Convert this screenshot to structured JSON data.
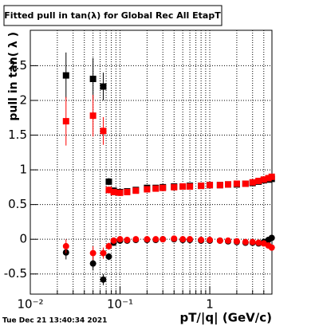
{
  "chart_data": {
    "type": "scatter",
    "title": "Fitted pull in tan(λ) for Global Rec All EtapT",
    "x_label": "pT/|q| (GeV/c)",
    "y_label": "pull in tan( λ )",
    "footer": "Tue Dec 21 13:40:34 2021",
    "xlog": true,
    "grid": true,
    "xlim": [
      0.01,
      4.93
    ],
    "ylim": [
      -0.79,
      3.01
    ],
    "xticks": [
      {
        "value": 0.01,
        "label": "10⁻²"
      },
      {
        "value": 0.1,
        "label": "10⁻¹"
      },
      1
    ],
    "xminor": [
      0.02,
      0.03,
      0.04,
      0.05,
      0.06,
      0.07,
      0.08,
      0.09,
      0.2,
      0.3,
      0.4,
      0.5,
      0.6,
      0.7,
      0.8,
      0.9,
      2,
      3,
      4
    ],
    "yticks": [
      -0.5,
      0,
      0.5,
      1,
      1.5,
      2,
      2.5
    ],
    "series": [
      {
        "color": "#000000",
        "marker": "square",
        "x": [
          0.025,
          0.05,
          0.065,
          0.075,
          0.085,
          0.1,
          0.12,
          0.15,
          0.2,
          0.25,
          0.3,
          0.4,
          0.5,
          0.6,
          0.8,
          1,
          1.3,
          1.6,
          2,
          2.5,
          3,
          3.5,
          4,
          4.5,
          4.9
        ],
        "values": [
          2.36,
          2.31,
          2.2,
          0.83,
          0.7,
          0.68,
          0.69,
          0.71,
          0.74,
          0.74,
          0.75,
          0.76,
          0.76,
          0.77,
          0.77,
          0.78,
          0.78,
          0.79,
          0.79,
          0.8,
          0.81,
          0.83,
          0.85,
          0.86,
          0.87
        ],
        "errors": [
          0.33,
          0.3,
          0.2,
          0.05,
          0.04,
          0.02,
          0.02,
          0.02,
          0.02,
          0.02,
          0.02,
          0.02,
          0.02,
          0.02,
          0.02,
          0.02,
          0.02,
          0.02,
          0.02,
          0.02,
          0.02,
          0.02,
          0.02,
          0.02,
          0.02
        ]
      },
      {
        "color": "#ff0000",
        "marker": "square",
        "x": [
          0.025,
          0.05,
          0.065,
          0.075,
          0.085,
          0.1,
          0.12,
          0.15,
          0.2,
          0.25,
          0.3,
          0.4,
          0.5,
          0.6,
          0.8,
          1,
          1.3,
          1.6,
          2,
          2.5,
          3,
          3.5,
          4,
          4.5,
          4.9
        ],
        "values": [
          1.7,
          1.78,
          1.56,
          0.71,
          0.68,
          0.67,
          0.68,
          0.7,
          0.72,
          0.73,
          0.74,
          0.75,
          0.76,
          0.76,
          0.77,
          0.78,
          0.78,
          0.79,
          0.8,
          0.8,
          0.82,
          0.84,
          0.86,
          0.88,
          0.9
        ],
        "errors": [
          0.35,
          0.3,
          0.2,
          0.05,
          0.04,
          0.02,
          0.02,
          0.02,
          0.02,
          0.02,
          0.02,
          0.02,
          0.02,
          0.02,
          0.02,
          0.02,
          0.02,
          0.02,
          0.02,
          0.02,
          0.02,
          0.02,
          0.02,
          0.02,
          0.02
        ]
      },
      {
        "color": "#000000",
        "marker": "circle",
        "x": [
          0.025,
          0.05,
          0.065,
          0.075,
          0.085,
          0.1,
          0.12,
          0.15,
          0.2,
          0.25,
          0.3,
          0.4,
          0.5,
          0.6,
          0.8,
          1,
          1.3,
          1.6,
          2,
          2.5,
          3,
          3.5,
          4,
          4.5,
          4.9
        ],
        "values": [
          -0.19,
          -0.35,
          -0.58,
          -0.25,
          -0.05,
          -0.02,
          -0.02,
          -0.01,
          -0.01,
          -0.01,
          0,
          0,
          -0.01,
          -0.01,
          -0.02,
          -0.02,
          -0.02,
          -0.03,
          -0.04,
          -0.05,
          -0.05,
          -0.06,
          -0.04,
          -0.01,
          0.02
        ],
        "errors": [
          0.1,
          0.1,
          0.08,
          0.05,
          0.03,
          0.02,
          0.02,
          0.02,
          0.02,
          0.02,
          0.02,
          0.02,
          0.02,
          0.02,
          0.02,
          0.02,
          0.02,
          0.02,
          0.02,
          0.02,
          0.02,
          0.02,
          0.02,
          0.02,
          0.02
        ]
      },
      {
        "color": "#ff0000",
        "marker": "circle",
        "x": [
          0.025,
          0.05,
          0.065,
          0.075,
          0.085,
          0.1,
          0.12,
          0.15,
          0.2,
          0.25,
          0.3,
          0.4,
          0.5,
          0.6,
          0.8,
          1,
          1.3,
          1.6,
          2,
          2.5,
          3,
          3.5,
          4,
          4.5,
          4.9
        ],
        "values": [
          -0.1,
          -0.2,
          -0.2,
          -0.1,
          -0.02,
          0,
          -0.01,
          0,
          0,
          0,
          0,
          0.01,
          0,
          0,
          -0.01,
          -0.01,
          -0.02,
          -0.02,
          -0.03,
          -0.04,
          -0.04,
          -0.05,
          -0.06,
          -0.09,
          -0.12
        ],
        "errors": [
          0.1,
          0.1,
          0.08,
          0.05,
          0.03,
          0.02,
          0.02,
          0.02,
          0.02,
          0.02,
          0.02,
          0.02,
          0.02,
          0.02,
          0.02,
          0.02,
          0.02,
          0.02,
          0.02,
          0.02,
          0.02,
          0.02,
          0.02,
          0.02,
          0.02
        ]
      }
    ]
  }
}
